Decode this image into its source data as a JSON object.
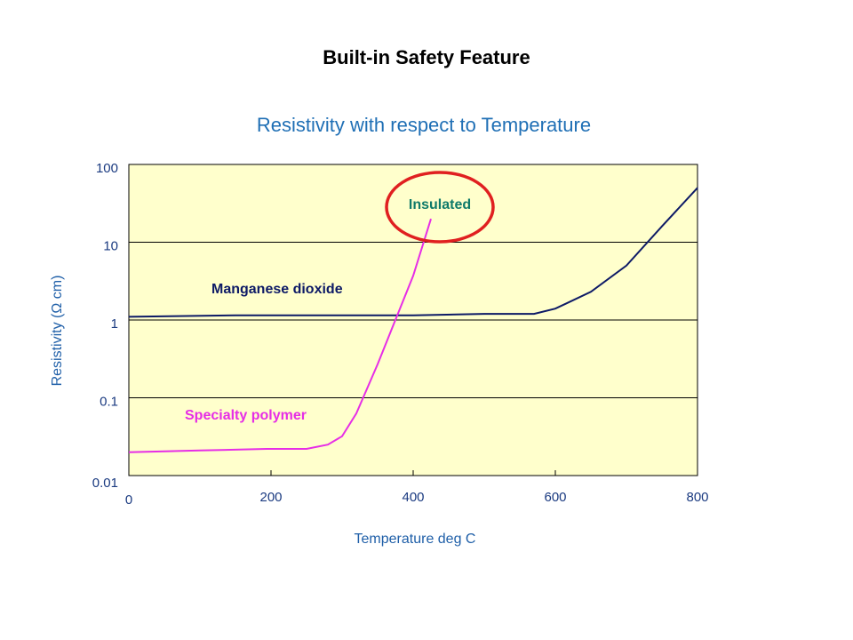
{
  "chart_data": {
    "type": "line",
    "title": "Built-in Safety Feature",
    "subtitle": "Resistivity with respect to Temperature",
    "x_label": "Temperature  deg C",
    "y_label": "Resistivity (Ω cm)",
    "y_scale": "log",
    "xlim": [
      0,
      800
    ],
    "xticks": [
      0,
      200,
      400,
      600,
      800
    ],
    "ylim": [
      0.01,
      100
    ],
    "yticks": [
      0.01,
      0.1,
      1,
      10,
      100
    ],
    "grid": true,
    "background": "#ffffcc",
    "series": [
      {
        "name": "Manganese dioxide",
        "color": "#0d1a66",
        "x": [
          0,
          150,
          300,
          400,
          500,
          570,
          600,
          650,
          700,
          750,
          800
        ],
        "values": [
          1.1,
          1.15,
          1.15,
          1.15,
          1.2,
          1.2,
          1.4,
          2.3,
          5,
          16,
          50
        ]
      },
      {
        "name": "Specialty polymer",
        "color": "#e62ee6",
        "x": [
          0,
          100,
          194,
          250,
          280,
          300,
          320,
          350,
          370,
          400,
          425
        ],
        "values": [
          0.02,
          0.021,
          0.022,
          0.022,
          0.025,
          0.032,
          0.063,
          0.27,
          0.77,
          3.7,
          20
        ]
      }
    ],
    "annotations": [
      {
        "text": "Insulated",
        "color": "#0f7a6a",
        "highlight": "#e02020"
      }
    ]
  }
}
